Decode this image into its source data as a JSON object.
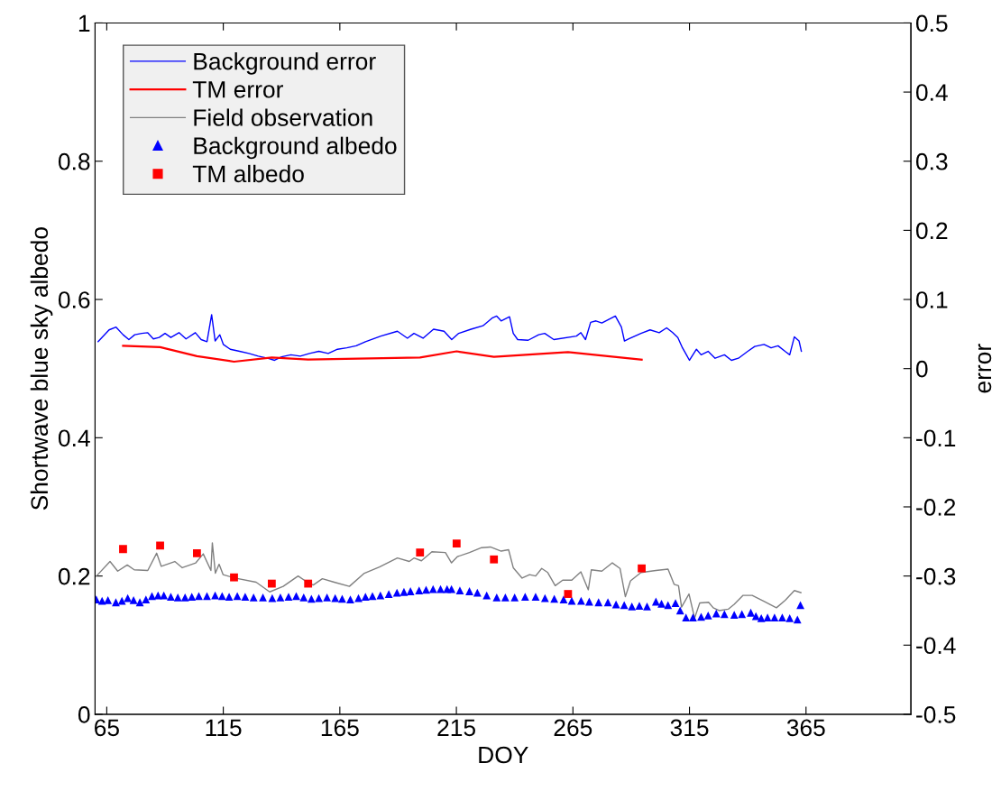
{
  "chart_data": {
    "type": "line",
    "xlabel": "DOY",
    "ylabel": "Shortwave blue sky albedo",
    "y2label": "error",
    "xlim": [
      60,
      410
    ],
    "xticks": [
      65,
      115,
      165,
      215,
      265,
      315,
      365
    ],
    "ylim": [
      0,
      1
    ],
    "yticks": [
      0,
      0.2,
      0.4,
      0.6,
      0.8,
      1
    ],
    "y2lim": [
      -0.5,
      0.5
    ],
    "y2ticks": [
      -0.5,
      -0.4,
      -0.3,
      -0.2,
      -0.1,
      0,
      0.1,
      0.2,
      0.3,
      0.4,
      0.5
    ],
    "legend": "top left",
    "grid": false,
    "series": [
      {
        "name": "Background error",
        "axis": "y2",
        "color": "#0000ff",
        "marker": "none",
        "line_style": "solid",
        "x": [
          61.3,
          66,
          69,
          72,
          74.5,
          77,
          80,
          82.5,
          85,
          87.5,
          90,
          92.5,
          96,
          99,
          103,
          105.5,
          108,
          110,
          111.5,
          113.5,
          115,
          118,
          122,
          126,
          130,
          134,
          137,
          140,
          144,
          148,
          152,
          156,
          160,
          164,
          168,
          172,
          176,
          182.6,
          189.7,
          194,
          196.8,
          200.7,
          205.2,
          209.7,
          213,
          216,
          221.3,
          226.4,
          230.3,
          232.3,
          234.2,
          237.8,
          239.4,
          241.3,
          245.8,
          250.3,
          252.9,
          256.8,
          266.5,
          268.4,
          270.4,
          272.6,
          274.9,
          277.4,
          283.2,
          285.8,
          287.1,
          289,
          294.2,
          298.1,
          302,
          305.2,
          307.8,
          310,
          312,
          315,
          318,
          320,
          323,
          326,
          330,
          333,
          336,
          340,
          343,
          347,
          350,
          353,
          356,
          358,
          360,
          362,
          363
        ],
        "values": [
          0.039,
          0.056,
          0.06,
          0.049,
          0.042,
          0.049,
          0.051,
          0.052,
          0.043,
          0.045,
          0.051,
          0.045,
          0.052,
          0.043,
          0.052,
          0.042,
          0.039,
          0.078,
          0.04,
          0.049,
          0.035,
          0.028,
          0.025,
          0.022,
          0.018,
          0.015,
          0.012,
          0.017,
          0.02,
          0.018,
          0.022,
          0.025,
          0.022,
          0.028,
          0.03,
          0.033,
          0.039,
          0.047,
          0.054,
          0.044,
          0.051,
          0.044,
          0.057,
          0.054,
          0.042,
          0.051,
          0.057,
          0.062,
          0.073,
          0.076,
          0.069,
          0.075,
          0.051,
          0.042,
          0.041,
          0.049,
          0.051,
          0.042,
          0.047,
          0.052,
          0.042,
          0.067,
          0.069,
          0.066,
          0.076,
          0.06,
          0.04,
          0.043,
          0.051,
          0.056,
          0.052,
          0.059,
          0.052,
          0.045,
          0.03,
          0.012,
          0.028,
          0.02,
          0.025,
          0.015,
          0.02,
          0.012,
          0.015,
          0.025,
          0.032,
          0.035,
          0.03,
          0.033,
          0.025,
          0.02,
          0.046,
          0.04,
          0.025
        ]
      },
      {
        "name": "TM error",
        "axis": "y2",
        "color": "#ff0000",
        "marker": "none",
        "line_style": "solid",
        "x": [
          72,
          87.9,
          103.7,
          119.6,
          135.8,
          151.4,
          199.4,
          215.1,
          231.1,
          262.9,
          294.5
        ],
        "values": [
          0.033,
          0.031,
          0.018,
          0.01,
          0.016,
          0.013,
          0.016,
          0.025,
          0.017,
          0.024,
          0.013
        ]
      },
      {
        "name": "Field observation",
        "color": "#808080",
        "marker": "none",
        "line_style": "solid",
        "x": [
          60.6,
          66.4,
          69.7,
          73.8,
          76.8,
          82.6,
          86.4,
          88.4,
          94.2,
          97.4,
          103.2,
          106.4,
          109.7,
          110.3,
          111.6,
          113.2,
          114.9,
          120,
          129.1,
          134.9,
          140.7,
          147.1,
          151,
          153.6,
          157.5,
          162.6,
          169.1,
          175.5,
          182,
          189.7,
          194.8,
          196.8,
          200,
          204.5,
          210.3,
          212.9,
          215.4,
          220.6,
          225.8,
          229.6,
          234.2,
          237.4,
          239.4,
          243.2,
          246.4,
          249,
          251.6,
          254.2,
          257.4,
          260.6,
          264.5,
          268.4,
          271.6,
          272.9,
          277.4,
          281.9,
          285.2,
          287.5,
          289.7,
          294.2,
          300.6,
          305.8,
          308.4,
          310.3,
          311.6,
          314.8,
          317.2,
          319.4,
          323.2,
          325.2,
          327.7,
          331.6,
          334.2,
          338,
          341.9,
          347.1,
          352.3,
          356.1,
          360,
          362.8
        ],
        "values": [
          0.2,
          0.221,
          0.207,
          0.216,
          0.209,
          0.208,
          0.233,
          0.214,
          0.221,
          0.212,
          0.219,
          0.232,
          0.208,
          0.248,
          0.204,
          0.217,
          0.202,
          0.197,
          0.191,
          0.177,
          0.185,
          0.2,
          0.191,
          0.187,
          0.196,
          0.191,
          0.185,
          0.204,
          0.213,
          0.226,
          0.221,
          0.226,
          0.222,
          0.235,
          0.234,
          0.219,
          0.228,
          0.234,
          0.241,
          0.242,
          0.236,
          0.238,
          0.212,
          0.197,
          0.202,
          0.2,
          0.211,
          0.205,
          0.186,
          0.194,
          0.194,
          0.206,
          0.18,
          0.209,
          0.207,
          0.219,
          0.211,
          0.17,
          0.193,
          0.205,
          0.208,
          0.21,
          0.188,
          0.186,
          0.155,
          0.174,
          0.139,
          0.161,
          0.162,
          0.154,
          0.15,
          0.152,
          0.159,
          0.172,
          0.172,
          0.163,
          0.154,
          0.165,
          0.179,
          0.176
        ]
      },
      {
        "name": "Background albedo",
        "type": "scatter",
        "color": "#0000ff",
        "marker": "triangle",
        "x": [
          60.5,
          63,
          65.5,
          68.9,
          71.5,
          74,
          76.5,
          79.2,
          81.8,
          84.4,
          87,
          89.5,
          92.5,
          95.5,
          98.6,
          101.5,
          104.5,
          108,
          111.5,
          114.5,
          117.5,
          121,
          124.4,
          128,
          132,
          136,
          139.5,
          143,
          146.3,
          149.5,
          152.8,
          156,
          159.5,
          163,
          166,
          169.5,
          173,
          176,
          179,
          182.4,
          186,
          189.5,
          192.5,
          195.3,
          199,
          202,
          205,
          208.2,
          211,
          212.9,
          216.5,
          220.6,
          224,
          228,
          232.3,
          236,
          240,
          244.5,
          249,
          253,
          257,
          261,
          264.5,
          268.5,
          272,
          276,
          280,
          283.5,
          287,
          290.3,
          293.5,
          296.8,
          300.6,
          303,
          305.8,
          309,
          311,
          313.5,
          316.5,
          320,
          323,
          326.5,
          330,
          334.2,
          337.5,
          341.3,
          343.5,
          345.8,
          348.5,
          351.5,
          354.8,
          358,
          361.3,
          362.6
        ],
        "values": [
          0.166,
          0.164,
          0.165,
          0.162,
          0.164,
          0.168,
          0.165,
          0.162,
          0.166,
          0.171,
          0.172,
          0.172,
          0.17,
          0.169,
          0.169,
          0.17,
          0.171,
          0.171,
          0.172,
          0.171,
          0.17,
          0.171,
          0.17,
          0.169,
          0.169,
          0.168,
          0.169,
          0.17,
          0.171,
          0.169,
          0.167,
          0.168,
          0.169,
          0.168,
          0.167,
          0.166,
          0.168,
          0.17,
          0.171,
          0.172,
          0.174,
          0.176,
          0.177,
          0.178,
          0.179,
          0.18,
          0.181,
          0.181,
          0.181,
          0.181,
          0.179,
          0.178,
          0.176,
          0.172,
          0.169,
          0.169,
          0.169,
          0.17,
          0.17,
          0.168,
          0.167,
          0.166,
          0.164,
          0.164,
          0.163,
          0.162,
          0.162,
          0.159,
          0.158,
          0.156,
          0.157,
          0.156,
          0.163,
          0.16,
          0.158,
          0.161,
          0.15,
          0.14,
          0.14,
          0.141,
          0.143,
          0.146,
          0.145,
          0.144,
          0.145,
          0.147,
          0.142,
          0.139,
          0.14,
          0.14,
          0.14,
          0.139,
          0.137,
          0.158
        ]
      },
      {
        "name": "TM albedo",
        "type": "scatter",
        "color": "#ff0000",
        "marker": "square",
        "x": [
          72,
          87.9,
          103.7,
          119.6,
          135.8,
          151.4,
          199.4,
          215.1,
          231.1,
          262.9,
          294.5
        ],
        "values": [
          0.239,
          0.244,
          0.233,
          0.198,
          0.189,
          0.189,
          0.234,
          0.247,
          0.224,
          0.174,
          0.211
        ]
      }
    ]
  }
}
